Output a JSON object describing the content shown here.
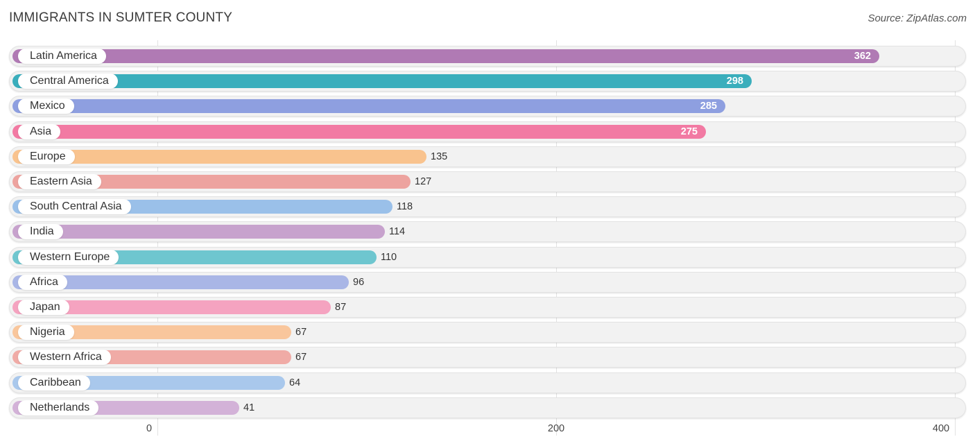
{
  "header": {
    "title": "IMMIGRANTS IN SUMTER COUNTY",
    "source": "Source: ZipAtlas.com"
  },
  "chart_data": {
    "type": "bar",
    "orientation": "horizontal",
    "title": "IMMIGRANTS IN SUMTER COUNTY",
    "xlim": [
      0,
      400
    ],
    "ticks": [
      {
        "value": 0,
        "label": "0"
      },
      {
        "value": 200,
        "label": "200"
      },
      {
        "value": 400,
        "label": "400"
      }
    ],
    "categories": [
      "Latin America",
      "Central America",
      "Mexico",
      "Asia",
      "Europe",
      "Eastern Asia",
      "South Central Asia",
      "India",
      "Western Europe",
      "Africa",
      "Japan",
      "Nigeria",
      "Western Africa",
      "Caribbean",
      "Netherlands"
    ],
    "values": [
      362,
      298,
      285,
      275,
      135,
      127,
      118,
      114,
      110,
      96,
      87,
      67,
      67,
      64,
      41
    ],
    "value_labels": [
      "362",
      "298",
      "285",
      "275",
      "135",
      "127",
      "118",
      "114",
      "110",
      "96",
      "87",
      "67",
      "67",
      "64",
      "41"
    ],
    "colors": [
      "#b07ab4",
      "#3aaebc",
      "#8e9fe0",
      "#f27aa3",
      "#f9c38e",
      "#eda39f",
      "#9ac0e9",
      "#c7a2cd",
      "#6ec6cf",
      "#a9b6e6",
      "#f5a3c0",
      "#f9c69c",
      "#f0aba6",
      "#a9c8ec",
      "#d3b2d8"
    ],
    "grid": true,
    "legend": "none"
  }
}
